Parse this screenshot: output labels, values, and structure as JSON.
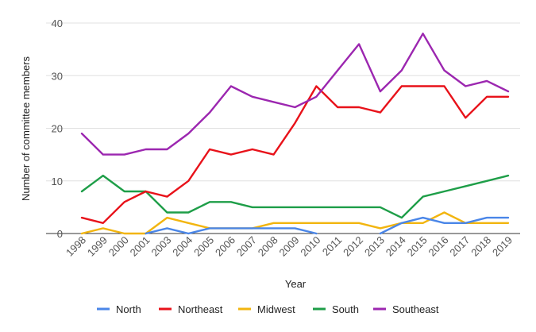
{
  "chart_data": {
    "type": "line",
    "xlabel": "Year",
    "ylabel": "Number of committee members",
    "ylim": [
      0,
      40
    ],
    "yticks": [
      0,
      10,
      20,
      30,
      40
    ],
    "grid": true,
    "legend_position": "bottom",
    "categories": [
      "1998",
      "1999",
      "2000",
      "2001",
      "2003",
      "2004",
      "2005",
      "2006",
      "2007",
      "2008",
      "2009",
      "2010",
      "2011",
      "2012",
      "2013",
      "2014",
      "2015",
      "2016",
      "2017",
      "2018",
      "2019"
    ],
    "series": [
      {
        "name": "North",
        "color": "#4a86e8",
        "values": [
          null,
          null,
          null,
          0,
          1,
          0,
          1,
          1,
          1,
          1,
          1,
          0,
          null,
          null,
          0,
          2,
          3,
          2,
          2,
          3,
          3
        ]
      },
      {
        "name": "Northeast",
        "color": "#e8121a",
        "values": [
          3,
          2,
          6,
          8,
          7,
          10,
          16,
          15,
          16,
          15,
          21,
          28,
          24,
          24,
          23,
          28,
          28,
          28,
          22,
          26,
          26
        ]
      },
      {
        "name": "Midwest",
        "color": "#f2b50f",
        "values": [
          0,
          1,
          0,
          0,
          3,
          2,
          1,
          1,
          1,
          2,
          2,
          2,
          2,
          2,
          1,
          2,
          2,
          4,
          2,
          2,
          2
        ]
      },
      {
        "name": "South",
        "color": "#1e9e48",
        "values": [
          8,
          11,
          8,
          8,
          4,
          4,
          6,
          6,
          5,
          5,
          5,
          5,
          5,
          5,
          5,
          3,
          7,
          8,
          9,
          10,
          11
        ]
      },
      {
        "name": "Southeast",
        "color": "#9c27b0",
        "values": [
          19,
          15,
          15,
          16,
          16,
          19,
          23,
          28,
          26,
          25,
          24,
          26,
          31,
          36,
          27,
          31,
          38,
          31,
          28,
          29,
          27
        ]
      }
    ]
  }
}
